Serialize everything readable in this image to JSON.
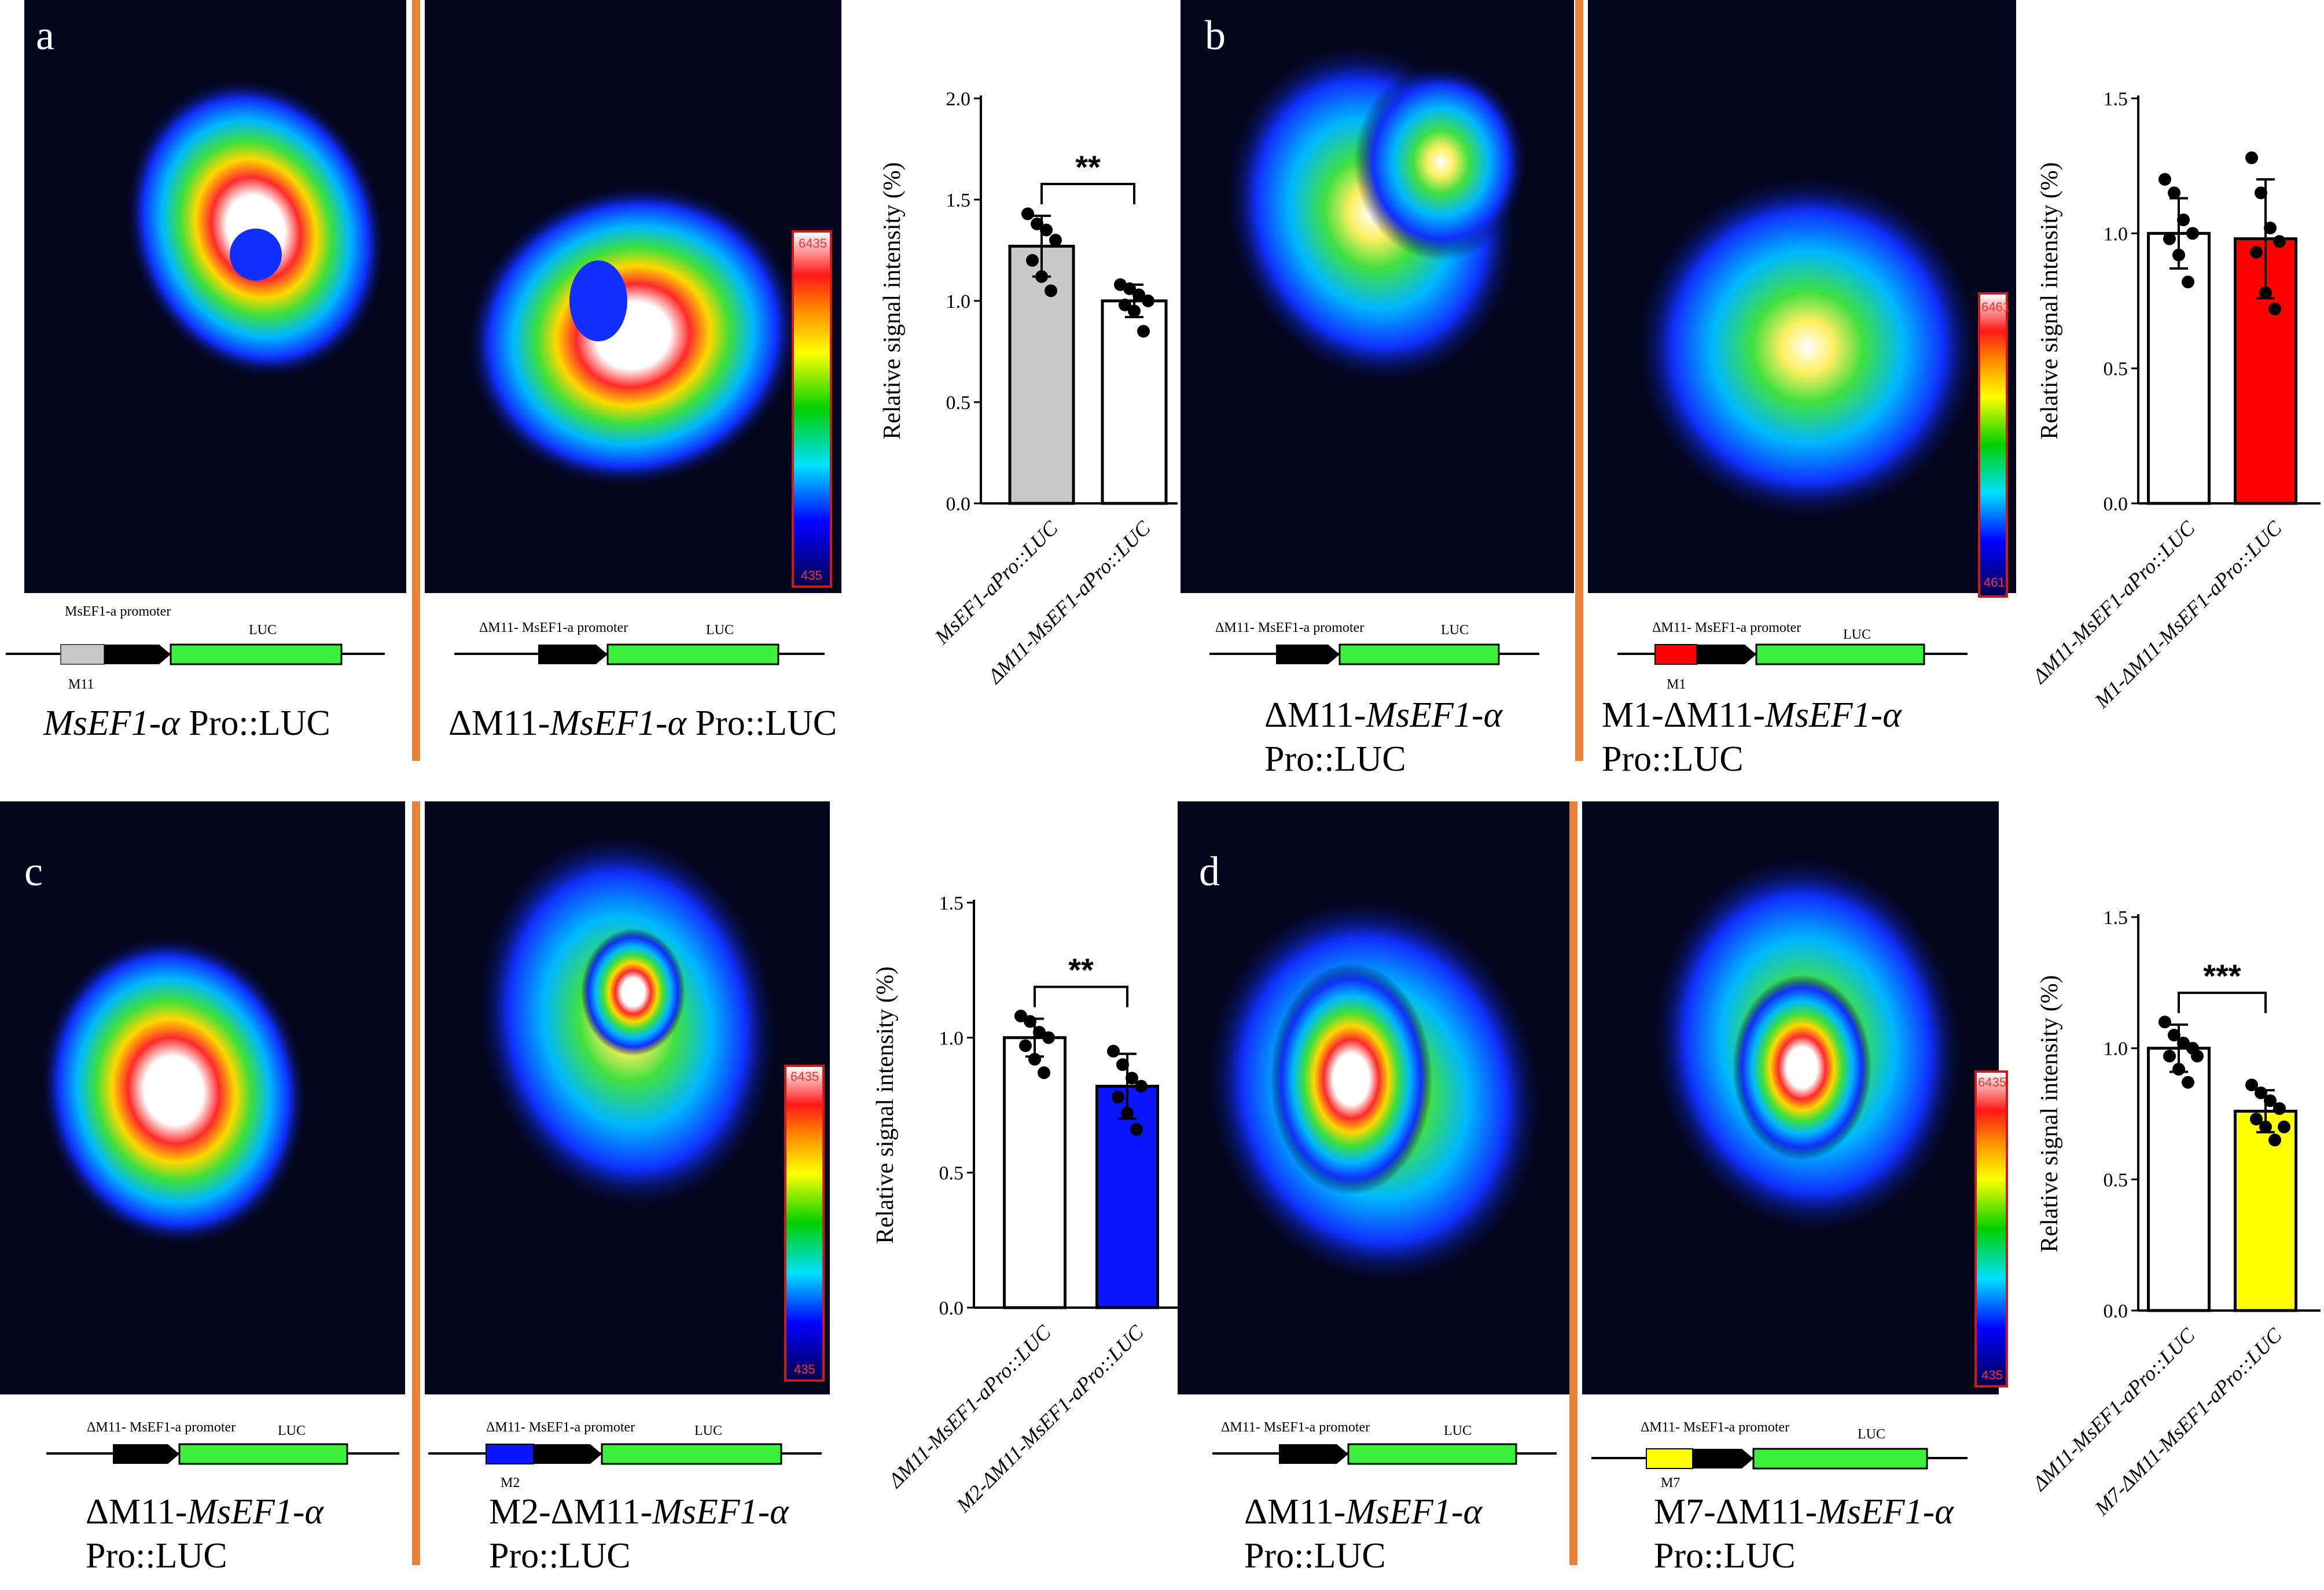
{
  "panels": [
    {
      "letter": "a",
      "scale": {
        "top": "6435",
        "bottom": "435"
      },
      "diagrams": [
        {
          "promoter": "MsEF1-a promoter",
          "luc": "LUC",
          "module": "M11"
        },
        {
          "promoter": "ΔM11- MsEF1-a promoter",
          "luc": "LUC"
        }
      ],
      "captions": [
        {
          "prefix": "",
          "gene": "MsEF1-α",
          "suffix": " Pro::LUC"
        },
        {
          "prefix": "ΔM11-",
          "gene": "MsEF1-α",
          "suffix": " Pro::LUC"
        }
      ]
    },
    {
      "letter": "b",
      "scale": {
        "top": "6461",
        "bottom": "461"
      },
      "diagrams": [
        {
          "promoter": "ΔM11- MsEF1-a promoter",
          "luc": "LUC"
        },
        {
          "promoter": "ΔM11- MsEF1-a promoter",
          "luc": "LUC",
          "module": "M1"
        }
      ],
      "captions": [
        {
          "prefix": "ΔM11-",
          "gene": "MsEF1-α",
          "line2": "Pro::LUC"
        },
        {
          "prefix": "M1-ΔM11-",
          "gene": "MsEF1-α",
          "line2": "Pro::LUC"
        }
      ]
    },
    {
      "letter": "c",
      "scale": {
        "top": "6435",
        "bottom": "435"
      },
      "diagrams": [
        {
          "promoter": "ΔM11- MsEF1-a promoter",
          "luc": "LUC"
        },
        {
          "promoter": "ΔM11- MsEF1-a promoter",
          "luc": "LUC",
          "module": "M2"
        }
      ],
      "captions": [
        {
          "prefix": "ΔM11-",
          "gene": "MsEF1-α",
          "line2": "Pro::LUC"
        },
        {
          "prefix": "M2-ΔM11-",
          "gene": "MsEF1-α",
          "line2": "Pro::LUC"
        }
      ]
    },
    {
      "letter": "d",
      "scale": {
        "top": "6435",
        "bottom": "435"
      },
      "diagrams": [
        {
          "promoter": "ΔM11- MsEF1-a promoter",
          "luc": "LUC"
        },
        {
          "promoter": "ΔM11- MsEF1-a promoter",
          "luc": "LUC",
          "module": "M7"
        }
      ],
      "captions": [
        {
          "prefix": "ΔM11-",
          "gene": "MsEF1-α",
          "line2": "Pro::LUC"
        },
        {
          "prefix": "M7-ΔM11-",
          "gene": "MsEF1-α",
          "line2": "Pro::LUC"
        }
      ]
    }
  ],
  "colors": {
    "grey": "#c8c8c8",
    "white": "#ffffff",
    "red": "#ff0000",
    "blue": "#0a14ff",
    "yellow": "#ffff00",
    "green": "#3cf03c",
    "divider": "#e8813a"
  },
  "chart_data": [
    {
      "type": "bar",
      "panel": "a",
      "ylabel": "Relative signal intensity (%)",
      "ylim": [
        0,
        2.0
      ],
      "yticks": [
        "0.0",
        "0.5",
        "1.0",
        "1.5",
        "2.0"
      ],
      "categories": [
        "MsEF1-aPro::LUC",
        "ΔM11-MsEF1-aPro::LUC"
      ],
      "values": [
        1.27,
        1.0
      ],
      "errors": [
        0.15,
        0.08
      ],
      "points": [
        [
          1.43,
          1.38,
          1.35,
          1.3,
          1.2,
          1.12,
          1.05
        ],
        [
          1.08,
          1.06,
          1.03,
          1.0,
          0.98,
          0.95,
          0.85
        ]
      ],
      "bar_colors": [
        "#c8c8c8",
        "#ffffff"
      ],
      "significance": "**"
    },
    {
      "type": "bar",
      "panel": "b",
      "ylabel": "Relative signal intensity (%)",
      "ylim": [
        0,
        1.5
      ],
      "yticks": [
        "0.0",
        "0.5",
        "1.0",
        "1.5"
      ],
      "categories": [
        "ΔM11-MsEF1-aPro::LUC",
        "M1-ΔM11-MsEF1-aPro::LUC"
      ],
      "values": [
        1.0,
        0.98
      ],
      "errors": [
        0.13,
        0.22
      ],
      "points": [
        [
          1.2,
          1.15,
          1.05,
          1.0,
          0.98,
          0.92,
          0.82
        ],
        [
          1.28,
          1.15,
          1.02,
          0.97,
          0.93,
          0.78,
          0.72
        ]
      ],
      "bar_colors": [
        "#ffffff",
        "#ff0000"
      ],
      "significance": ""
    },
    {
      "type": "bar",
      "panel": "c",
      "ylabel": "Relative signal intensity (%)",
      "ylim": [
        0,
        1.5
      ],
      "yticks": [
        "0.0",
        "0.5",
        "1.0",
        "1.5"
      ],
      "categories": [
        "ΔM11-MsEF1-aPro::LUC",
        "M2-ΔM11-MsEF1-aPro::LUC"
      ],
      "values": [
        1.0,
        0.82
      ],
      "errors": [
        0.07,
        0.12
      ],
      "points": [
        [
          1.08,
          1.06,
          1.02,
          1.0,
          0.97,
          0.92,
          0.87
        ],
        [
          0.95,
          0.9,
          0.85,
          0.82,
          0.78,
          0.72,
          0.66
        ]
      ],
      "bar_colors": [
        "#ffffff",
        "#0a14ff"
      ],
      "significance": "**"
    },
    {
      "type": "bar",
      "panel": "d",
      "ylabel": "Relative signal intensity (%)",
      "ylim": [
        0,
        1.5
      ],
      "yticks": [
        "0.0",
        "0.5",
        "1.0",
        "1.5"
      ],
      "categories": [
        "ΔM11-MsEF1-aPro::LUC",
        "M7-ΔM11-MsEF1-aPro::LUC"
      ],
      "values": [
        1.0,
        0.76
      ],
      "errors": [
        0.09,
        0.08
      ],
      "points": [
        [
          1.1,
          1.05,
          1.02,
          1.0,
          0.97,
          0.92,
          0.87,
          0.97
        ],
        [
          0.86,
          0.83,
          0.8,
          0.77,
          0.73,
          0.7,
          0.65,
          0.7
        ]
      ],
      "bar_colors": [
        "#ffffff",
        "#ffff00"
      ],
      "significance": "***"
    }
  ]
}
